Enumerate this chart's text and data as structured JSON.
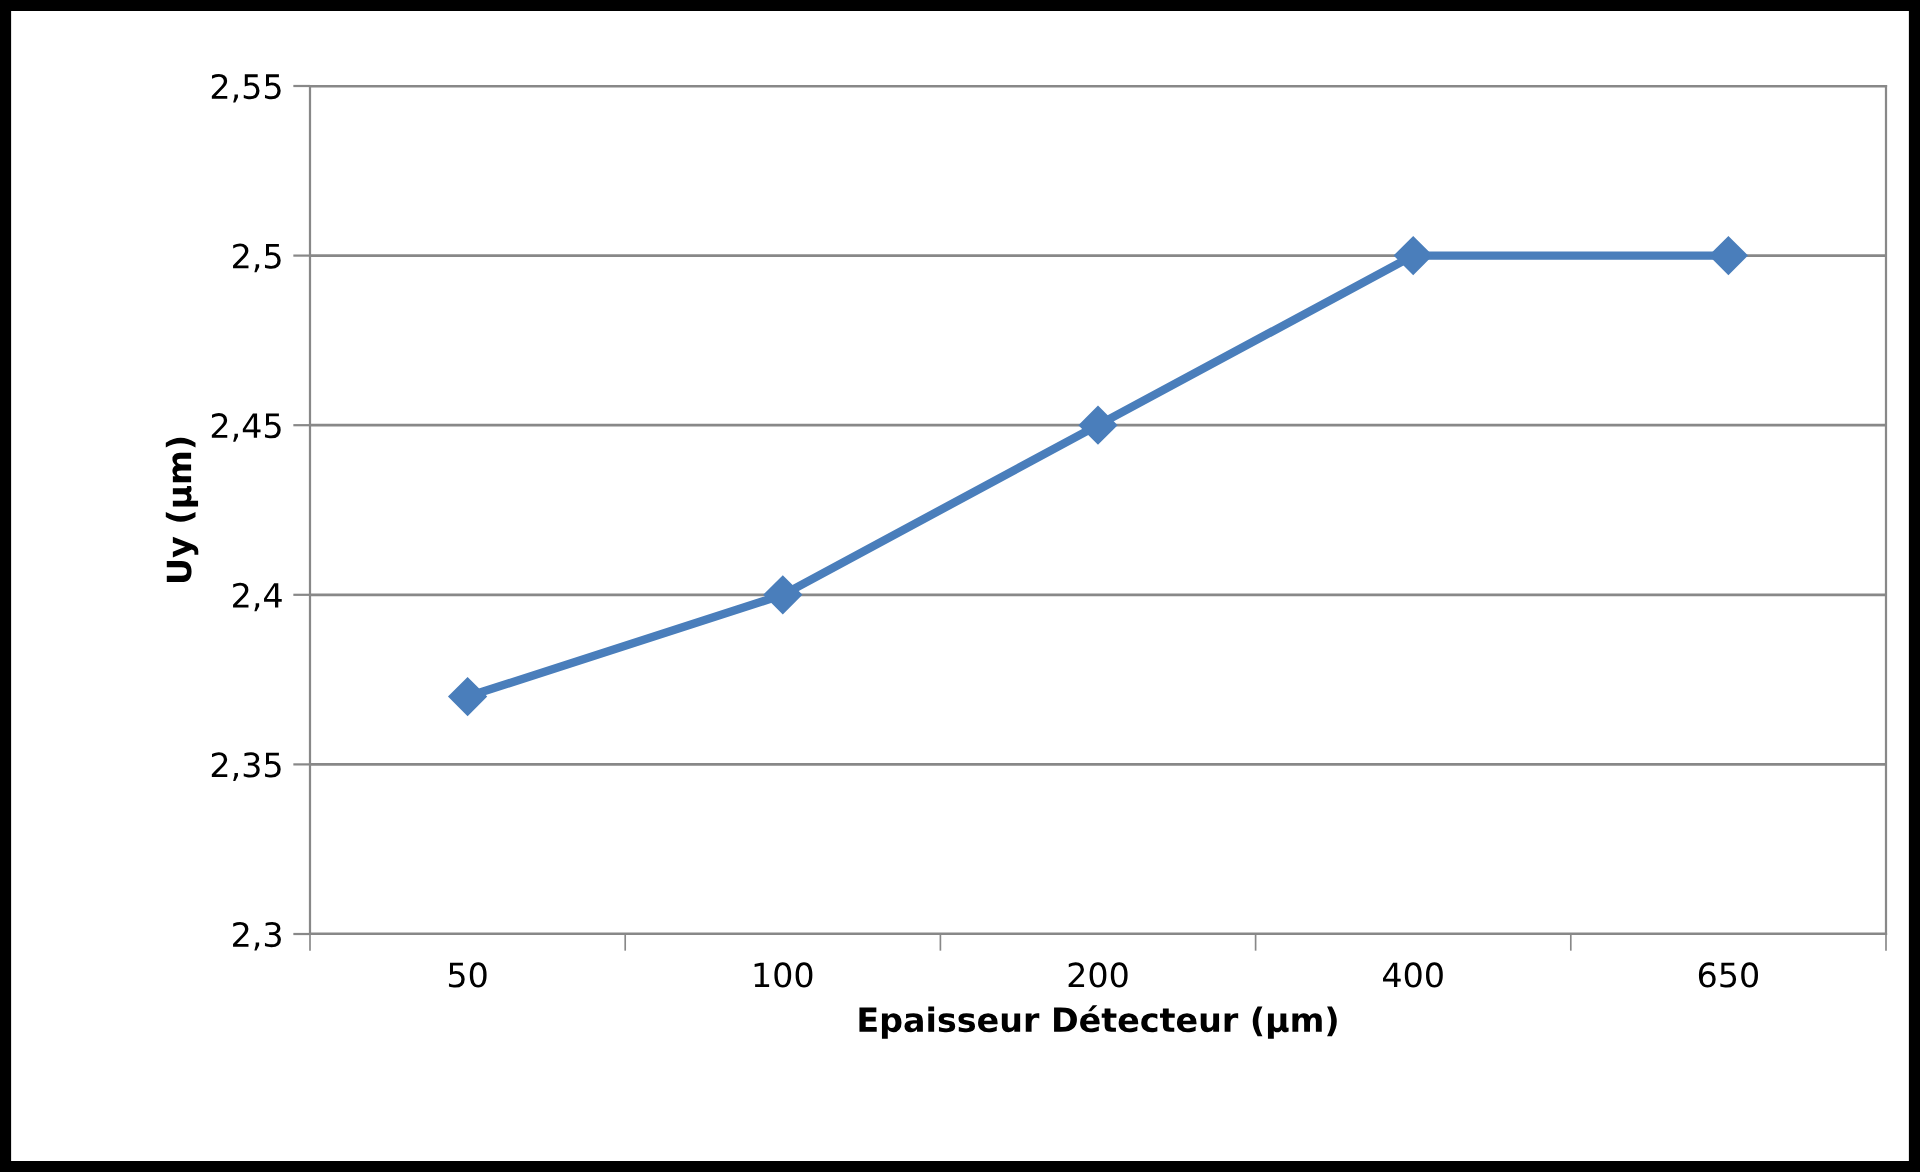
{
  "chart_data": {
    "type": "line",
    "xlabel": "Epaisseur Détecteur (µm)",
    "ylabel": "Uy (µm)",
    "categories": [
      "50",
      "100",
      "200",
      "400",
      "650"
    ],
    "series": [
      {
        "color": "#4a7ebb",
        "values": [
          2.37,
          2.4,
          2.45,
          2.5,
          2.5
        ]
      }
    ],
    "ylim": [
      2.3,
      2.55
    ],
    "yticks": [
      {
        "value": 2.3,
        "label": "2,3"
      },
      {
        "value": 2.35,
        "label": "2,35"
      },
      {
        "value": 2.4,
        "label": "2,4"
      },
      {
        "value": 2.45,
        "label": "2,45"
      },
      {
        "value": 2.5,
        "label": "2,5"
      },
      {
        "value": 2.55,
        "label": "2,55"
      }
    ],
    "grid": "y",
    "marker": "diamond",
    "line_style": "solid",
    "legend": false
  }
}
